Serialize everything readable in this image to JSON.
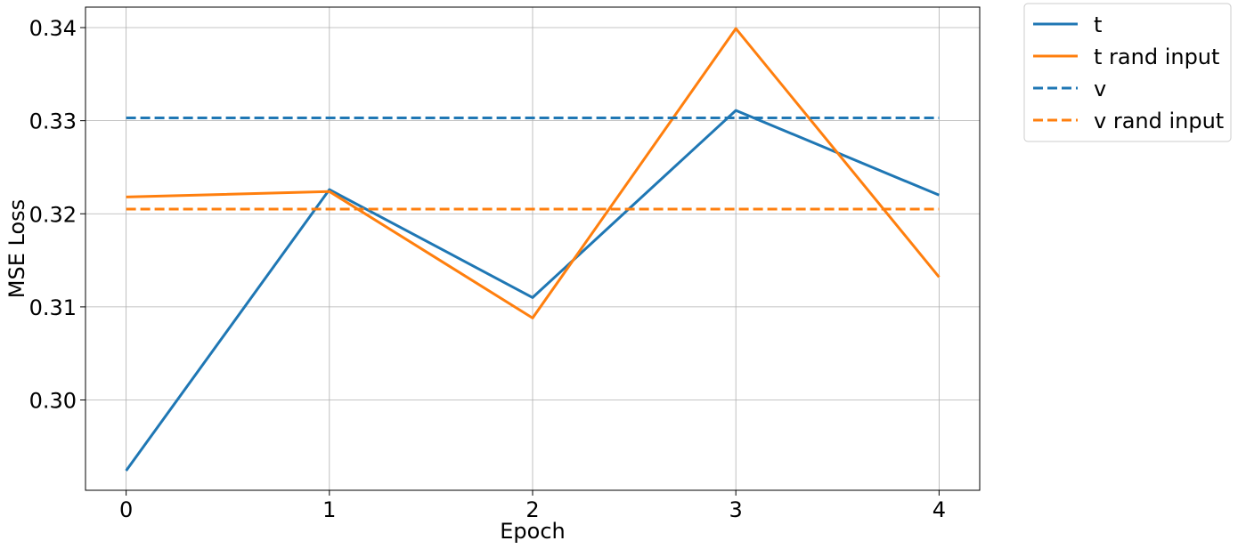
{
  "chart_data": {
    "type": "line",
    "title": "",
    "xlabel": "Epoch",
    "ylabel": "MSE Loss",
    "x": [
      0,
      1,
      2,
      3,
      4
    ],
    "xlim": [
      -0.2,
      4.2
    ],
    "ylim": [
      0.2903,
      0.3422
    ],
    "xticks": [
      0,
      1,
      2,
      3,
      4
    ],
    "xtick_labels": [
      "0",
      "1",
      "2",
      "3",
      "4"
    ],
    "yticks": [
      0.3,
      0.31,
      0.32,
      0.33,
      0.34
    ],
    "ytick_labels": [
      "0.30",
      "0.31",
      "0.32",
      "0.33",
      "0.34"
    ],
    "grid": true,
    "legend_position": "outside-top-right",
    "series": [
      {
        "name": "t",
        "values": [
          0.2924,
          0.3226,
          0.311,
          0.3311,
          0.322
        ],
        "color": "#1f77b4",
        "style": "solid"
      },
      {
        "name": "t rand input",
        "values": [
          0.3218,
          0.3224,
          0.3088,
          0.3399,
          0.3132
        ],
        "color": "#ff7f0e",
        "style": "solid"
      },
      {
        "name": "v",
        "values": [
          0.3303,
          0.3303,
          0.3303,
          0.3303,
          0.3303
        ],
        "color": "#1f77b4",
        "style": "dashed"
      },
      {
        "name": "v rand input",
        "values": [
          0.3205,
          0.3205,
          0.3205,
          0.3205,
          0.3205
        ],
        "color": "#ff7f0e",
        "style": "dashed"
      }
    ]
  }
}
